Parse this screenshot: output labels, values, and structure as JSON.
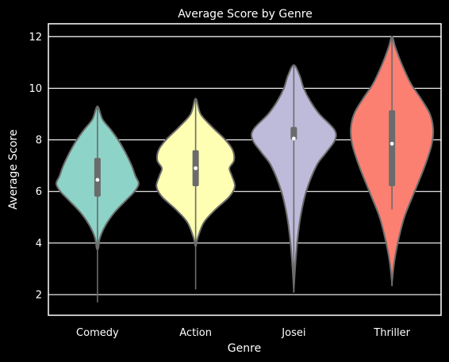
{
  "chart_data": {
    "type": "violin",
    "title": "Average Score by Genre",
    "xlabel": "Genre",
    "ylabel": "Average Score",
    "ylim": [
      1.2,
      12.5
    ],
    "yticks": [
      2,
      4,
      6,
      8,
      10,
      12
    ],
    "grid": "horizontal",
    "categories": [
      "Comedy",
      "Action",
      "Josei",
      "Thriller"
    ],
    "colors": [
      "#8dd3c7",
      "#ffffb3",
      "#bebada",
      "#fb8072"
    ],
    "violins": [
      {
        "name": "Comedy",
        "whisker": [
          1.7,
          9.3
        ],
        "q1": 5.8,
        "median": 6.45,
        "q3": 7.3,
        "profile": [
          [
            3.8,
            0.02
          ],
          [
            4.2,
            0.06
          ],
          [
            4.7,
            0.2
          ],
          [
            5.2,
            0.42
          ],
          [
            5.7,
            0.72
          ],
          [
            6.0,
            0.9
          ],
          [
            6.3,
            1.0
          ],
          [
            6.6,
            0.92
          ],
          [
            7.0,
            0.83
          ],
          [
            7.5,
            0.68
          ],
          [
            8.0,
            0.5
          ],
          [
            8.4,
            0.32
          ],
          [
            8.8,
            0.12
          ],
          [
            9.3,
            0.0
          ]
        ]
      },
      {
        "name": "Action",
        "whisker": [
          2.2,
          9.6
        ],
        "q1": 6.2,
        "median": 6.9,
        "q3": 7.6,
        "profile": [
          [
            3.9,
            0.01
          ],
          [
            4.2,
            0.05
          ],
          [
            4.8,
            0.2
          ],
          [
            5.3,
            0.48
          ],
          [
            5.8,
            0.82
          ],
          [
            6.2,
            0.95
          ],
          [
            6.6,
            0.88
          ],
          [
            6.9,
            0.82
          ],
          [
            7.2,
            0.93
          ],
          [
            7.6,
            0.9
          ],
          [
            8.0,
            0.72
          ],
          [
            8.5,
            0.4
          ],
          [
            9.0,
            0.12
          ],
          [
            9.6,
            0.0
          ]
        ]
      },
      {
        "name": "Josei",
        "whisker": [
          2.2,
          10.9
        ],
        "q1": 8.0,
        "median": 8.05,
        "q3": 8.5,
        "profile": [
          [
            2.2,
            0.0
          ],
          [
            3.0,
            0.03
          ],
          [
            4.0,
            0.08
          ],
          [
            5.0,
            0.16
          ],
          [
            6.0,
            0.3
          ],
          [
            7.0,
            0.55
          ],
          [
            7.5,
            0.78
          ],
          [
            8.0,
            1.0
          ],
          [
            8.4,
            0.98
          ],
          [
            9.0,
            0.62
          ],
          [
            9.5,
            0.4
          ],
          [
            10.0,
            0.24
          ],
          [
            10.5,
            0.14
          ],
          [
            10.9,
            0.0
          ]
        ]
      },
      {
        "name": "Thriller",
        "whisker": [
          5.3,
          12.0
        ],
        "q1": 6.2,
        "median": 7.85,
        "q3": 9.15,
        "profile": [
          [
            2.45,
            0.0
          ],
          [
            3.2,
            0.05
          ],
          [
            4.0,
            0.14
          ],
          [
            5.0,
            0.3
          ],
          [
            6.0,
            0.55
          ],
          [
            7.0,
            0.8
          ],
          [
            7.8,
            0.96
          ],
          [
            8.4,
            1.0
          ],
          [
            9.0,
            0.92
          ],
          [
            9.6,
            0.7
          ],
          [
            10.2,
            0.45
          ],
          [
            11.0,
            0.22
          ],
          [
            11.6,
            0.08
          ],
          [
            12.0,
            0.0
          ]
        ]
      }
    ]
  }
}
